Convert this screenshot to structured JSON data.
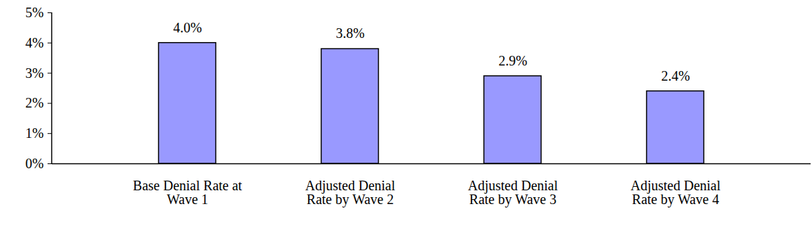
{
  "chart_data": {
    "type": "bar",
    "categories": [
      "Base Denial Rate at\nWave 1",
      "Adjusted Denial\nRate by Wave 2",
      "Adjusted Denial\nRate by Wave 3",
      "Adjusted Denial\nRate by Wave 4"
    ],
    "values": [
      4.0,
      3.8,
      2.9,
      2.4
    ],
    "value_labels": [
      "4.0%",
      "3.8%",
      "2.9%",
      "2.4%"
    ],
    "color": "#9999ff",
    "ylim": [
      0,
      5
    ],
    "yticks": [
      {
        "value": 0,
        "label": "0%"
      },
      {
        "value": 1,
        "label": "1%"
      },
      {
        "value": 2,
        "label": "2%"
      },
      {
        "value": 3,
        "label": "3%"
      },
      {
        "value": 4,
        "label": "4%"
      },
      {
        "value": 5,
        "label": "5%"
      }
    ],
    "grid": false,
    "data_labels": true
  }
}
